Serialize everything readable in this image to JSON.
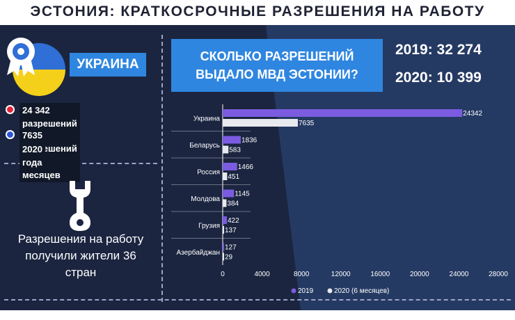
{
  "title": "ЭСТОНИЯ: КРАТКОСРОЧНЫЕ РАЗРЕШЕНИЯ НА РАБОТУ",
  "left": {
    "country": "УКРАИНА",
    "fact1": "24 342 разрешений в 2019 году",
    "fact2_line1": "7635 разрешений за 6 месяцев",
    "fact2_line2": "2020 года",
    "summary_line1": "Разрешения на работу",
    "summary_line2": "получили жители 36",
    "summary_line3": "стран",
    "icons": [
      "medal-badge-icon",
      "wrench-icon"
    ]
  },
  "right": {
    "question_line1": "СКОЛЬКО РАЗРЕШЕНИЙ",
    "question_line2": "ВЫДАЛО МВД ЭСТОНИИ?",
    "stat_2019": "2019: 32 274",
    "stat_2020": "2020: 10 399"
  },
  "colors": {
    "series_2019": "#7b5ce0",
    "series_2020": "#e8eaee",
    "accent_blue": "#2f86e0",
    "fact1_dot": "#e0263a",
    "fact2_dot": "#2a56d8"
  },
  "chart_data": {
    "type": "bar",
    "orientation": "horizontal",
    "categories": [
      "Украина",
      "Беларусь",
      "Россия",
      "Молдова",
      "Грузия",
      "Азербайджан"
    ],
    "series": [
      {
        "name": "2019",
        "values": [
          24342,
          1836,
          1466,
          1145,
          422,
          127
        ]
      },
      {
        "name": "2020 (6 месяцев)",
        "values": [
          7635,
          583,
          451,
          384,
          137,
          29
        ]
      }
    ],
    "xlim": [
      0,
      28000
    ],
    "xticks": [
      "0",
      "4000",
      "8000",
      "12000",
      "16000",
      "20000",
      "24000",
      "28000"
    ],
    "legend": "bottom",
    "grid": false,
    "data_labels": true
  }
}
